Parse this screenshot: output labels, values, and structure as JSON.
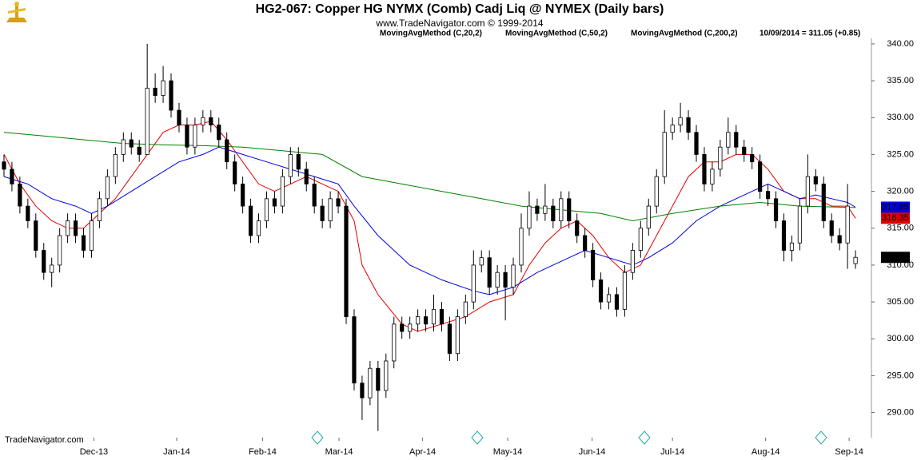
{
  "chart_data": {
    "type": "candlestick",
    "title": "HG2-067:  Copper HG NYMX (Comb) Cadj Liq @ NYMEX  (Daily bars)",
    "subtitle": "www.TradeNavigator.com © 1999-2014",
    "last_label": "10/09/2014 = 311.05 (+0.85)",
    "source": "TradeNavigator.com",
    "xlim": [
      -0.5,
      109
    ],
    "ylim": [
      286.6,
      342.7
    ],
    "xticks": [
      {
        "value": 11.3,
        "label": "Dec-13"
      },
      {
        "value": 21.7,
        "label": "Jan-14"
      },
      {
        "value": 32.5,
        "label": "Feb-14"
      },
      {
        "value": 42.1,
        "label": "Mar-14"
      },
      {
        "value": 52.6,
        "label": "Apr-14"
      },
      {
        "value": 63.3,
        "label": "May-14"
      },
      {
        "value": 73.9,
        "label": "Jun-14"
      },
      {
        "value": 84,
        "label": "Jul-14"
      },
      {
        "value": 95.7,
        "label": "Aug-14"
      },
      {
        "value": 106.2,
        "label": "Sep-14"
      }
    ],
    "yticks": [
      {
        "value": 290,
        "label": "290.00"
      },
      {
        "value": 295,
        "label": "295.00"
      },
      {
        "value": 300,
        "label": "300.00"
      },
      {
        "value": 305,
        "label": "305.00"
      },
      {
        "value": 310,
        "label": "310.00"
      },
      {
        "value": 315,
        "label": "315.00"
      },
      {
        "value": 320,
        "label": "320.00"
      },
      {
        "value": 325,
        "label": "325.00"
      },
      {
        "value": 330,
        "label": "330.00"
      },
      {
        "value": 335,
        "label": "335.00"
      },
      {
        "value": 340,
        "label": "340.00"
      }
    ],
    "grid": false,
    "ohlc": [
      [
        324,
        325,
        322,
        323
      ],
      [
        323,
        324,
        320,
        321
      ],
      [
        321,
        322,
        317,
        318
      ],
      [
        318,
        319,
        315,
        316
      ],
      [
        316,
        317,
        311,
        312
      ],
      [
        312,
        313,
        308,
        309
      ],
      [
        309,
        311,
        307,
        310
      ],
      [
        310,
        315,
        309,
        314
      ],
      [
        314,
        317,
        313,
        316
      ],
      [
        316,
        317,
        313,
        314
      ],
      [
        314,
        315,
        311,
        312
      ],
      [
        312,
        317,
        311,
        316
      ],
      [
        316,
        320,
        315,
        319
      ],
      [
        319,
        323,
        318,
        322
      ],
      [
        322,
        326,
        321,
        325
      ],
      [
        325,
        328,
        324,
        327
      ],
      [
        327,
        328,
        325,
        326
      ],
      [
        326,
        327,
        324,
        325
      ],
      [
        325,
        340,
        325,
        334
      ],
      [
        334,
        336,
        332,
        333
      ],
      [
        333,
        337,
        332,
        335
      ],
      [
        335,
        336,
        330,
        331
      ],
      [
        331,
        332,
        328,
        329
      ],
      [
        329,
        330,
        325,
        326
      ],
      [
        326,
        330,
        325,
        329
      ],
      [
        329,
        331,
        328,
        330
      ],
      [
        330,
        331,
        328,
        329
      ],
      [
        329,
        330,
        326,
        327
      ],
      [
        327,
        328,
        323,
        324
      ],
      [
        324,
        325,
        320,
        321
      ],
      [
        321,
        322,
        317,
        318
      ],
      [
        318,
        319,
        313,
        314
      ],
      [
        314,
        317,
        313,
        316
      ],
      [
        316,
        320,
        315,
        319
      ],
      [
        319,
        320,
        317,
        318
      ],
      [
        318,
        323,
        317,
        322
      ],
      [
        322,
        326,
        321,
        325
      ],
      [
        325,
        326,
        322,
        323
      ],
      [
        323,
        324,
        320,
        321
      ],
      [
        321,
        322,
        317,
        318
      ],
      [
        318,
        319,
        315,
        316
      ],
      [
        316,
        320,
        315,
        319
      ],
      [
        319,
        320,
        317,
        318
      ],
      [
        318,
        319,
        302,
        303
      ],
      [
        303,
        304,
        293,
        294
      ],
      [
        294,
        295,
        289,
        292
      ],
      [
        292,
        297,
        291,
        296
      ],
      [
        296,
        297,
        287.5,
        293
      ],
      [
        293,
        298,
        292,
        297
      ],
      [
        297,
        303,
        296,
        302
      ],
      [
        302,
        303,
        300,
        301
      ],
      [
        301,
        303,
        300,
        302
      ],
      [
        302,
        304,
        301,
        303
      ],
      [
        303,
        304,
        301,
        302
      ],
      [
        302,
        306,
        301,
        304
      ],
      [
        304,
        305,
        301,
        302
      ],
      [
        302,
        303,
        297,
        298
      ],
      [
        298,
        304,
        297,
        303
      ],
      [
        303,
        306,
        302,
        305
      ],
      [
        305,
        312,
        304,
        310
      ],
      [
        310,
        312,
        309,
        311
      ],
      [
        311,
        312,
        306,
        307
      ],
      [
        307,
        310,
        306,
        309
      ],
      [
        309,
        310,
        302.5,
        307
      ],
      [
        307,
        311,
        306,
        310
      ],
      [
        310,
        317,
        309,
        315
      ],
      [
        315,
        320,
        314,
        318
      ],
      [
        318,
        319,
        316,
        317
      ],
      [
        317,
        321,
        316,
        318
      ],
      [
        318,
        319,
        315,
        316
      ],
      [
        316,
        320,
        315,
        319
      ],
      [
        319,
        320,
        315,
        316
      ],
      [
        316,
        317,
        313,
        314
      ],
      [
        314,
        315,
        311,
        312
      ],
      [
        312,
        313,
        307,
        308
      ],
      [
        308,
        309,
        304,
        305
      ],
      [
        305,
        307,
        304,
        306
      ],
      [
        306,
        307,
        303,
        304
      ],
      [
        304,
        310,
        303,
        309
      ],
      [
        309,
        313,
        308,
        312
      ],
      [
        312,
        316,
        311,
        315
      ],
      [
        315,
        319,
        314,
        318
      ],
      [
        318,
        323,
        317,
        322
      ],
      [
        322,
        331,
        321,
        328
      ],
      [
        328,
        330,
        327,
        329
      ],
      [
        329,
        332,
        328,
        330
      ],
      [
        330,
        331,
        327,
        328
      ],
      [
        328,
        329,
        324,
        325
      ],
      [
        325,
        326,
        320,
        321
      ],
      [
        321,
        324,
        320,
        323
      ],
      [
        323,
        327,
        322,
        326
      ],
      [
        326,
        330,
        325,
        328
      ],
      [
        328,
        329,
        325,
        326
      ],
      [
        326,
        327,
        324,
        325
      ],
      [
        325,
        326,
        323,
        324
      ],
      [
        324,
        325,
        319,
        320
      ],
      [
        320,
        321,
        318,
        319
      ],
      [
        319,
        320,
        315,
        316
      ],
      [
        316,
        317,
        310.5,
        312
      ],
      [
        312,
        314,
        310.5,
        313
      ],
      [
        313,
        319,
        312,
        318
      ],
      [
        318,
        325,
        317,
        322
      ],
      [
        322,
        323,
        320,
        321
      ],
      [
        321,
        322,
        315,
        316
      ],
      [
        316,
        317,
        313,
        314
      ],
      [
        314,
        315,
        312,
        313
      ],
      [
        313,
        321,
        309.5,
        318
      ],
      [
        310.2,
        312,
        309.5,
        311.05
      ]
    ],
    "series": [
      {
        "name": "MovingAvgMethod (C,20,2)",
        "color": "#e00000",
        "x": [
          0,
          2,
          4,
          6,
          8,
          10,
          11,
          14,
          16,
          18,
          20,
          22,
          24,
          26,
          28,
          30,
          32,
          34,
          36,
          38,
          40,
          42,
          44,
          45,
          47,
          50,
          52,
          55,
          58,
          61,
          64,
          66,
          68,
          70,
          72,
          74,
          76,
          78,
          80,
          82,
          84,
          86,
          88,
          90,
          92,
          94,
          96,
          98,
          100,
          102,
          104,
          106,
          107
        ],
        "values": [
          325,
          321,
          318,
          316,
          315,
          315,
          316,
          319,
          322,
          325,
          328,
          329,
          329,
          329.5,
          327,
          324,
          321,
          320,
          321,
          322,
          321,
          320,
          316,
          310,
          306,
          302,
          301,
          302,
          303,
          305,
          306,
          310,
          313,
          315,
          316,
          314,
          311,
          309,
          310,
          314,
          318,
          322,
          324,
          324,
          325,
          325,
          323,
          320,
          319,
          319,
          318,
          318,
          316.35
        ]
      },
      {
        "name": "MovingAvgMethod (C,50,2)",
        "color": "#0000e0",
        "x": [
          0,
          3,
          6,
          9,
          11,
          13,
          16,
          19,
          22,
          25,
          27,
          30,
          33,
          36,
          39,
          42,
          44,
          47,
          51,
          55,
          59,
          61,
          64,
          67,
          71,
          73,
          76,
          79,
          81,
          84,
          87,
          90,
          92,
          94,
          96,
          98,
          100,
          102,
          104,
          106,
          107
        ],
        "values": [
          322,
          321,
          319,
          318,
          317,
          318,
          320,
          322,
          324,
          325,
          326,
          325,
          324,
          323,
          322,
          321,
          318,
          314,
          310,
          308,
          306.5,
          306,
          307,
          309,
          311,
          312,
          311,
          310,
          311,
          313,
          316,
          318,
          319,
          320,
          321,
          320,
          319,
          319.5,
          319,
          318.5,
          317.85
        ]
      },
      {
        "name": "MovingAvgMethod (C,200,2)",
        "color": "#008000",
        "x": [
          0,
          5,
          10,
          15,
          20,
          25,
          30,
          35,
          40,
          45,
          50,
          55,
          60,
          65,
          70,
          75,
          79,
          84,
          90,
          95,
          100,
          107
        ],
        "values": [
          328,
          327.5,
          327,
          326.5,
          326.3,
          326.2,
          326,
          325.5,
          325,
          322,
          321,
          320,
          319,
          318,
          317.5,
          317,
          316,
          317,
          318,
          318.5,
          318,
          317.8
        ]
      }
    ]
  }
}
